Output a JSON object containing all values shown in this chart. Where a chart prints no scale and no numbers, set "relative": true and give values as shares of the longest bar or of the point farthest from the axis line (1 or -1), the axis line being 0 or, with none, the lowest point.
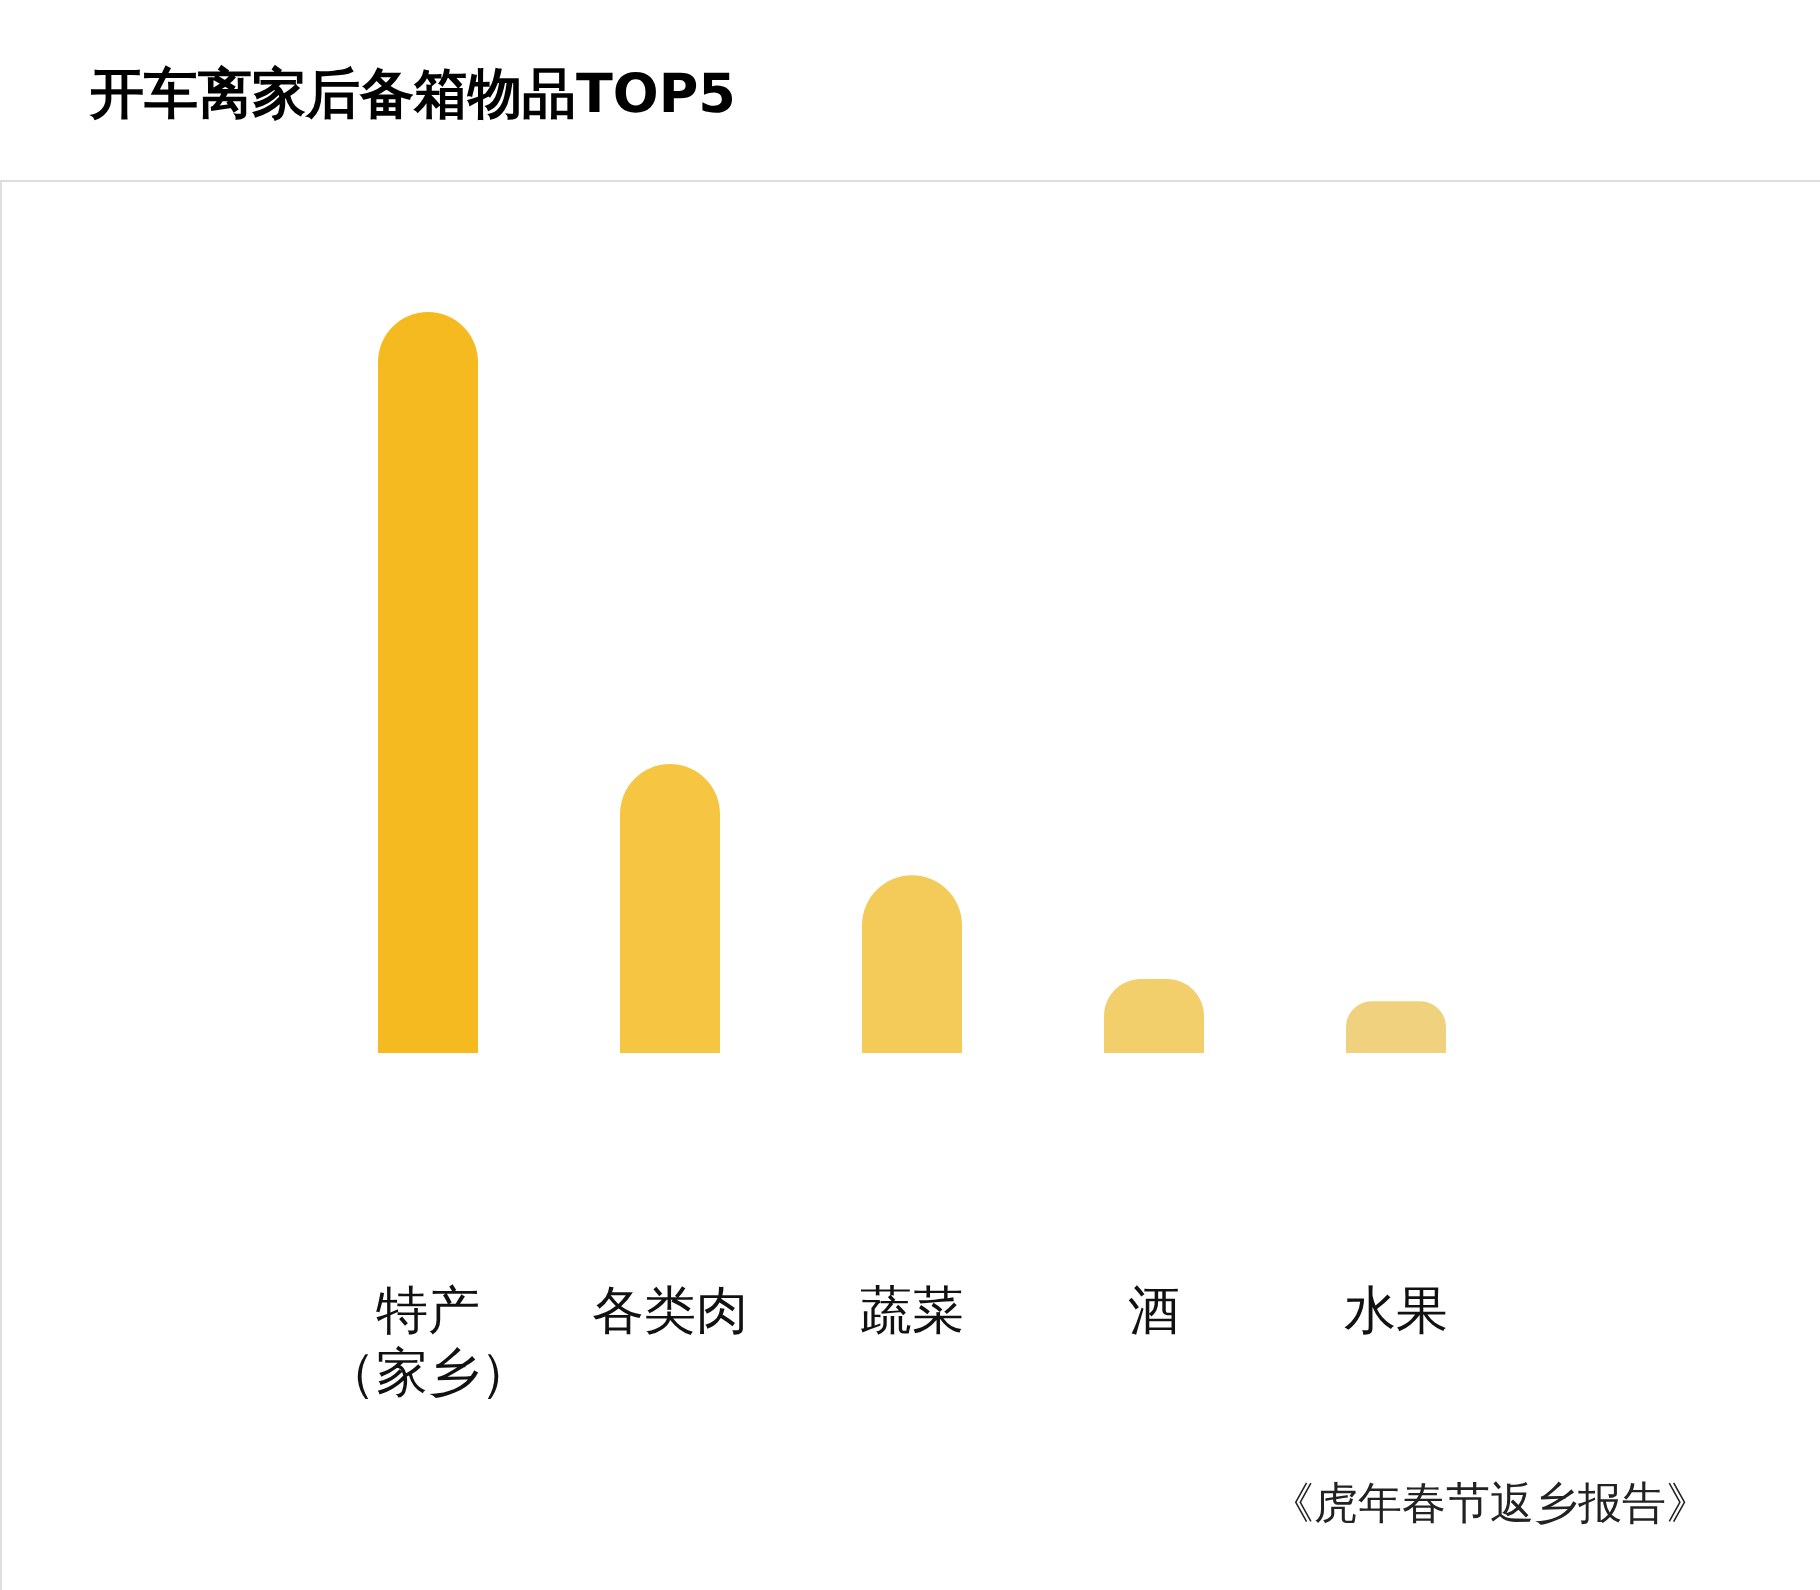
{
  "chart_data": {
    "type": "bar",
    "title": "开车离家后备箱物品TOP5",
    "categories": [
      "特产（家乡）",
      "各类肉",
      "蔬菜",
      "酒",
      "水果"
    ],
    "values": [
      1,
      0.39,
      0.24,
      0.1,
      0.07
    ],
    "colors": [
      "#f5ba1f",
      "#f6c542",
      "#f4ca58",
      "#f3cf6b",
      "#f0d27e"
    ],
    "relative": true,
    "annotations": [
      "《虎年春节返乡报告》"
    ]
  }
}
